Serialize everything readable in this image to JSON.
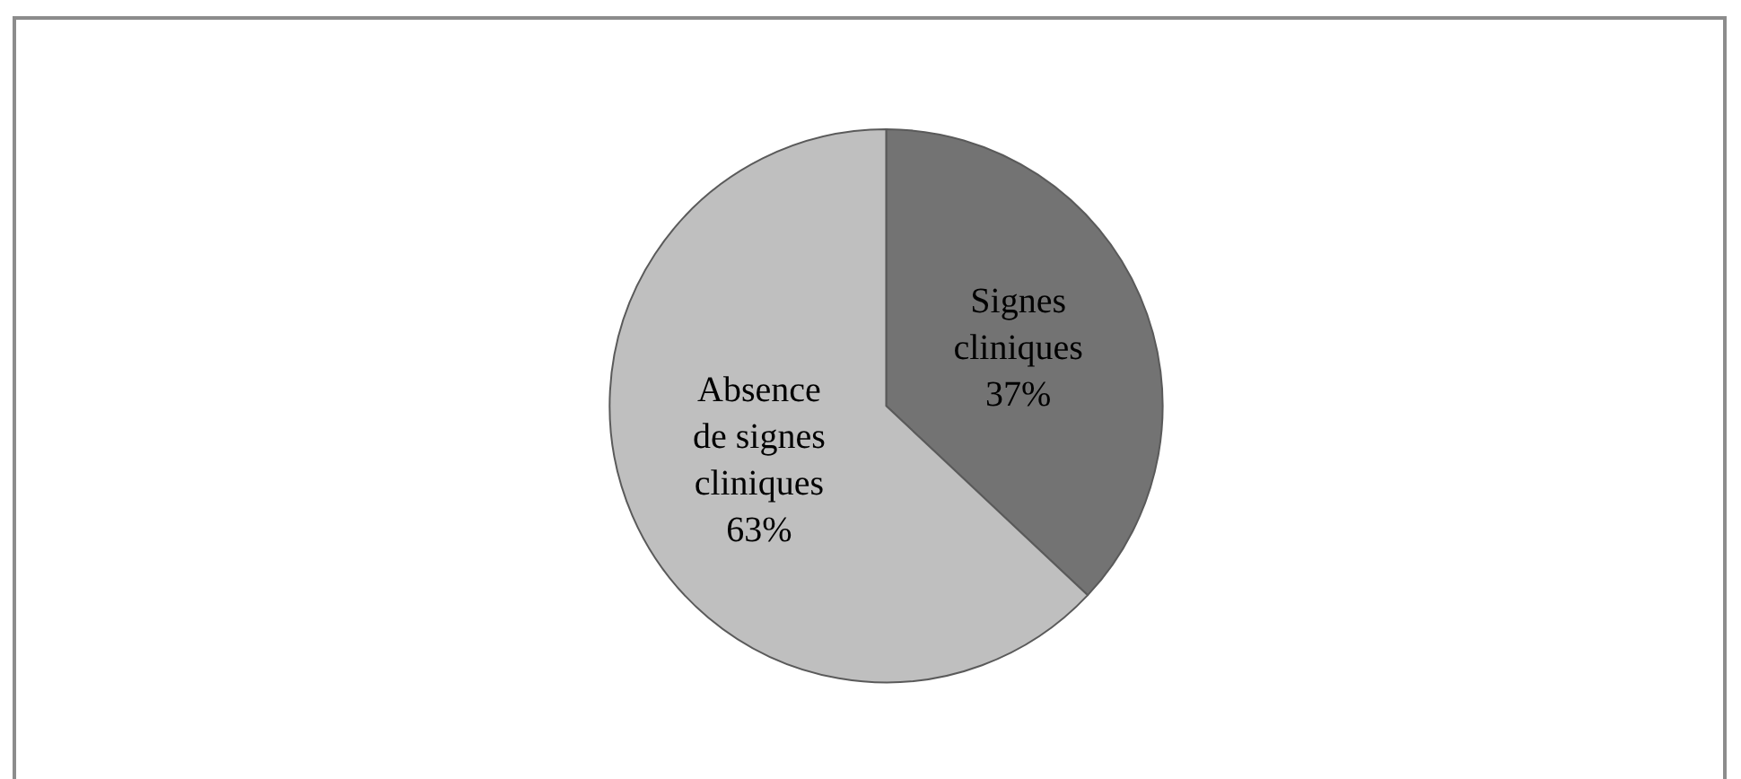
{
  "chart_data": {
    "type": "pie",
    "categories": [
      "Signes cliniques",
      "Absence de signes cliniques"
    ],
    "values": [
      37,
      63
    ],
    "colors": [
      "#737373",
      "#bfbfbf"
    ],
    "value_labels": [
      "37%",
      "63%"
    ],
    "legend": false
  }
}
